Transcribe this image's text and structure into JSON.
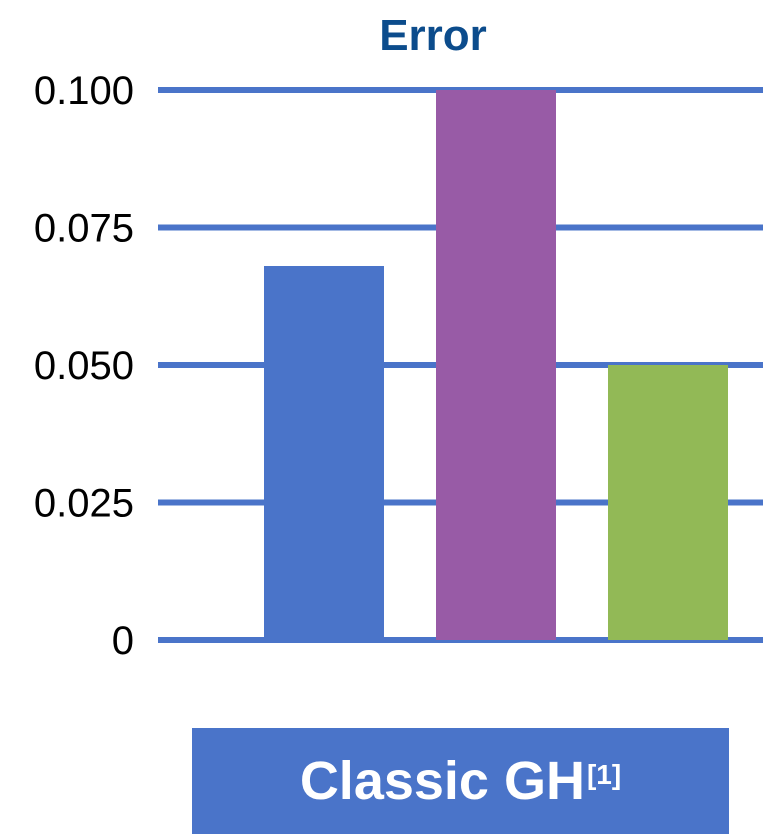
{
  "chart_data": {
    "type": "bar",
    "title": "Error",
    "xlabel": "",
    "ylabel": "",
    "categories": [
      "Classic GH"
    ],
    "category_superscript": "[1]",
    "series": [
      {
        "values": [
          0.068
        ],
        "color": "#4a74c9"
      },
      {
        "values": [
          0.1
        ],
        "color": "#985ba6"
      },
      {
        "values": [
          0.05
        ],
        "color": "#92b956"
      }
    ],
    "yticks": [
      0,
      0.025,
      0.05,
      0.075,
      0.1
    ],
    "ytick_labels": [
      "0",
      "0.025",
      "0.050",
      "0.075",
      "0.100"
    ],
    "ylim": [
      0,
      0.1
    ],
    "grid": true
  },
  "colors": {
    "title": "#0c4c8c",
    "grid": "#4a74c9",
    "category_box": "#4a74c9"
  }
}
